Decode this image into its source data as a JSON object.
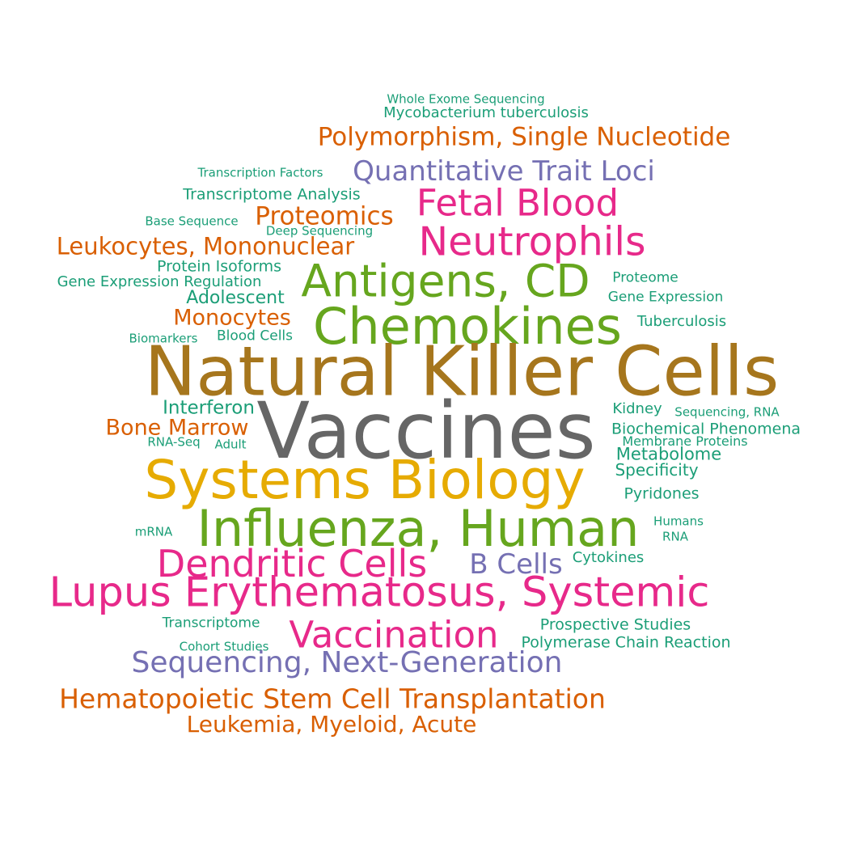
{
  "words": [
    {
      "text": "Whole Exome Sequencing",
      "color": "#1b9e77"
    },
    {
      "text": "Mycobacterium tuberculosis",
      "color": "#1b9e77"
    },
    {
      "text": "Polymorphism, Single Nucleotide",
      "color": "#d95f02"
    },
    {
      "text": "Transcription Factors",
      "color": "#1b9e77"
    },
    {
      "text": "Quantitative Trait Loci",
      "color": "#7570b3"
    },
    {
      "text": "Transcriptome Analysis",
      "color": "#1b9e77"
    },
    {
      "text": "Fetal Blood",
      "color": "#e7298a"
    },
    {
      "text": "Base Sequence",
      "color": "#1b9e77"
    },
    {
      "text": "Proteomics",
      "color": "#d95f02"
    },
    {
      "text": "Deep Sequencing",
      "color": "#1b9e77"
    },
    {
      "text": "Neutrophils",
      "color": "#e7298a"
    },
    {
      "text": "Leukocytes, Mononuclear",
      "color": "#d95f02"
    },
    {
      "text": "Protein Isoforms",
      "color": "#1b9e77"
    },
    {
      "text": "Gene Expression Regulation",
      "color": "#1b9e77"
    },
    {
      "text": "Antigens, CD",
      "color": "#66a61e"
    },
    {
      "text": "Proteome",
      "color": "#1b9e77"
    },
    {
      "text": "Adolescent",
      "color": "#1b9e77"
    },
    {
      "text": "Gene Expression",
      "color": "#1b9e77"
    },
    {
      "text": "Monocytes",
      "color": "#d95f02"
    },
    {
      "text": "Chemokines",
      "color": "#66a61e"
    },
    {
      "text": "Tuberculosis",
      "color": "#1b9e77"
    },
    {
      "text": "Biomarkers",
      "color": "#1b9e77"
    },
    {
      "text": "Blood Cells",
      "color": "#1b9e77"
    },
    {
      "text": "Natural Killer Cells",
      "color": "#a6761d"
    },
    {
      "text": "Interferon",
      "color": "#1b9e77"
    },
    {
      "text": "Kidney",
      "color": "#1b9e77"
    },
    {
      "text": "Sequencing, RNA",
      "color": "#1b9e77"
    },
    {
      "text": "Vaccines",
      "color": "#666666"
    },
    {
      "text": "Bone Marrow",
      "color": "#d95f02"
    },
    {
      "text": "Biochemical Phenomena",
      "color": "#1b9e77"
    },
    {
      "text": "RNA-Seq",
      "color": "#1b9e77"
    },
    {
      "text": "Adult",
      "color": "#1b9e77"
    },
    {
      "text": "Membrane Proteins",
      "color": "#1b9e77"
    },
    {
      "text": "Metabolome",
      "color": "#1b9e77"
    },
    {
      "text": "Systems Biology",
      "color": "#e6ab02"
    },
    {
      "text": "Specificity",
      "color": "#1b9e77"
    },
    {
      "text": "Pyridones",
      "color": "#1b9e77"
    },
    {
      "text": "Humans",
      "color": "#1b9e77"
    },
    {
      "text": "Influenza, Human",
      "color": "#66a61e"
    },
    {
      "text": "mRNA",
      "color": "#1b9e77"
    },
    {
      "text": "RNA",
      "color": "#1b9e77"
    },
    {
      "text": "Cytokines",
      "color": "#1b9e77"
    },
    {
      "text": "Dendritic Cells",
      "color": "#e7298a"
    },
    {
      "text": "B Cells",
      "color": "#7570b3"
    },
    {
      "text": "Lupus Erythematosus, Systemic",
      "color": "#e7298a"
    },
    {
      "text": "Transcriptome",
      "color": "#1b9e77"
    },
    {
      "text": "Vaccination",
      "color": "#e7298a"
    },
    {
      "text": "Prospective Studies",
      "color": "#1b9e77"
    },
    {
      "text": "Cohort Studies",
      "color": "#1b9e77"
    },
    {
      "text": "Polymerase Chain Reaction",
      "color": "#1b9e77"
    },
    {
      "text": "Sequencing, Next-Generation",
      "color": "#7570b3"
    },
    {
      "text": "Hematopoietic Stem Cell Transplantation",
      "color": "#d95f02"
    },
    {
      "text": "Leukemia, Myeloid, Acute",
      "color": "#d95f02"
    }
  ]
}
